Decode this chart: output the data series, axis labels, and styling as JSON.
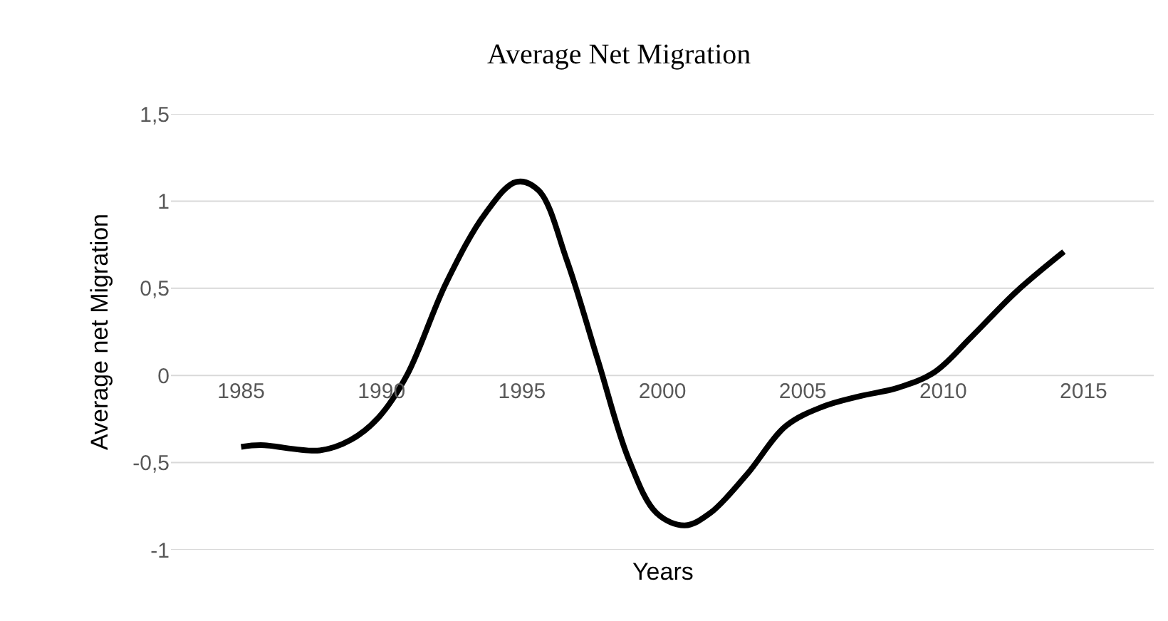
{
  "chart_data": {
    "type": "line",
    "title": "Average Net Migration",
    "xlabel": "Years",
    "ylabel": "Average net Migration",
    "x": [
      1985,
      1985.7,
      1987.8,
      1988.9,
      1989.9,
      1990.9,
      1992.3,
      1993.7,
      1994.8,
      1995.6,
      1996.6,
      1997.7,
      1998.8,
      1999.8,
      2000.8,
      2001.7,
      2003.0,
      2004.4,
      2005.7,
      2007.0,
      2008.4,
      2009.7,
      2011.0,
      2012.6,
      2014.3
    ],
    "series": [
      {
        "color": "#000000",
        "values": [
          -0.41,
          -0.4,
          -0.43,
          -0.37,
          -0.24,
          0.0,
          0.53,
          0.93,
          1.11,
          1.06,
          0.66,
          0.09,
          -0.48,
          -0.79,
          -0.86,
          -0.79,
          -0.57,
          -0.29,
          -0.18,
          -0.12,
          -0.07,
          0.02,
          0.22,
          0.48,
          0.71
        ]
      }
    ],
    "xlim": [
      1982.5,
      2017.5
    ],
    "xticks": [
      1985,
      1990,
      1995,
      2000,
      2005,
      2010,
      2015
    ],
    "ylim": [
      -1,
      1.5
    ],
    "yticks": [
      {
        "value": -1,
        "label": "-1"
      },
      {
        "value": -0.5,
        "label": "-0,5"
      },
      0,
      {
        "value": 0.5,
        "label": "0,5"
      },
      1,
      {
        "value": 1.5,
        "label": "1,5"
      }
    ],
    "grid": "y",
    "marker": "none",
    "line_style": "solid"
  }
}
